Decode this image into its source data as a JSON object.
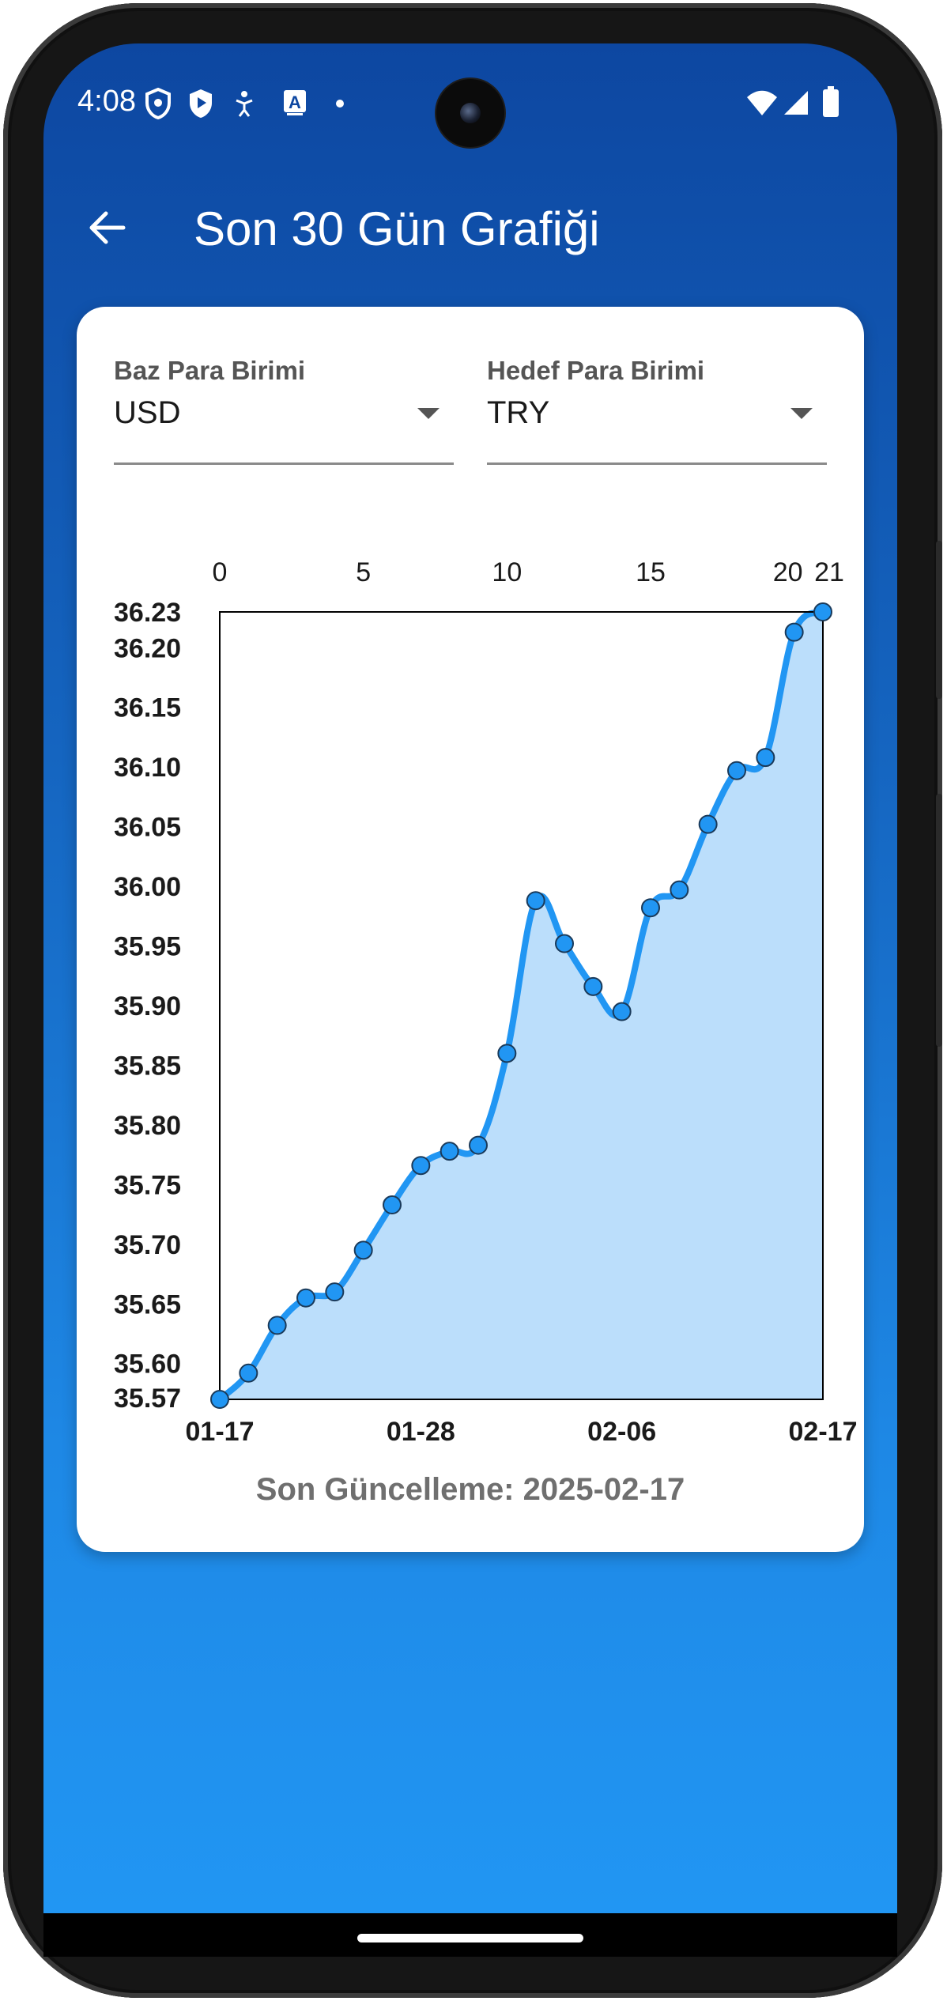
{
  "status_bar": {
    "time": "4:08",
    "left_icons": [
      "shield-icon",
      "play-protect-icon",
      "accessibility-icon",
      "a-icon",
      "dot-icon"
    ],
    "right_icons": [
      "wifi-icon",
      "signal-icon",
      "battery-icon"
    ]
  },
  "app_bar": {
    "back_icon": "arrow-left-icon",
    "title": "Son 30 Gün Grafiği"
  },
  "selectors": {
    "base": {
      "label": "Baz Para Birimi",
      "value": "USD"
    },
    "target": {
      "label": "Hedef Para Birimi",
      "value": "TRY"
    }
  },
  "chart_data": {
    "type": "area",
    "x": [
      0,
      1,
      2,
      3,
      4,
      5,
      6,
      7,
      8,
      9,
      10,
      11,
      12,
      13,
      14,
      15,
      16,
      17,
      18,
      19,
      20,
      21
    ],
    "values": [
      35.57,
      35.592,
      35.632,
      35.655,
      35.66,
      35.695,
      35.733,
      35.766,
      35.778,
      35.783,
      35.86,
      35.988,
      35.952,
      35.916,
      35.895,
      35.982,
      35.997,
      36.052,
      36.097,
      36.108,
      36.213,
      36.23
    ],
    "top_axis_ticks": [
      "0",
      "5",
      "10",
      "15",
      "20",
      "21"
    ],
    "top_axis_tick_positions": [
      0,
      5,
      10,
      15,
      20,
      21
    ],
    "y_ticks": [
      "35.57",
      "35.60",
      "35.65",
      "35.70",
      "35.75",
      "35.80",
      "35.85",
      "35.90",
      "35.95",
      "36.00",
      "36.05",
      "36.10",
      "36.15",
      "36.20",
      "36.23"
    ],
    "y_tick_values": [
      35.57,
      35.6,
      35.65,
      35.7,
      35.75,
      35.8,
      35.85,
      35.9,
      35.95,
      36.0,
      36.05,
      36.1,
      36.15,
      36.2,
      36.23
    ],
    "x_labels": [
      "01-17",
      "01-28",
      "02-06",
      "02-17"
    ],
    "x_label_positions": [
      0,
      7,
      14,
      21
    ],
    "ylim": [
      35.57,
      36.23
    ],
    "xlim": [
      0,
      21
    ],
    "grid": false,
    "line_color": "#2196f3",
    "fill_color": "#bbdefb",
    "point_color": "#2196f3"
  },
  "footer": {
    "last_updated": "Son Güncelleme: 2025-02-17"
  }
}
